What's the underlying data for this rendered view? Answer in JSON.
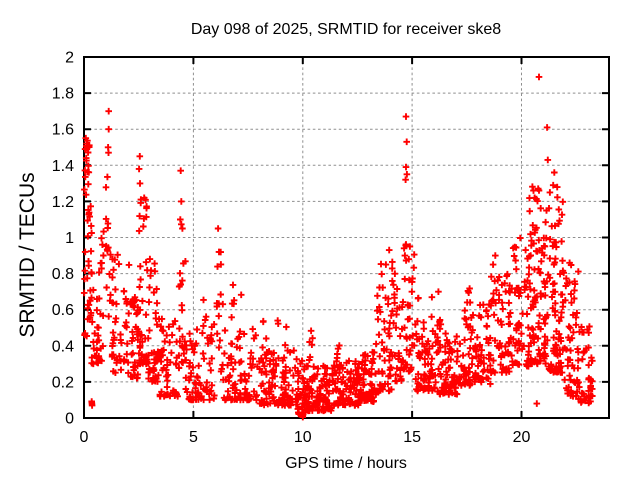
{
  "figure": {
    "background": "#ffffff",
    "text_color": "#000000",
    "border_color": "#000000"
  },
  "chart_data": {
    "type": "scatter",
    "title": "Day 098 of 2025, SRMTID for receiver ske8",
    "xlabel": "GPS time / hours",
    "ylabel": "SRMTID / TECUs",
    "xlim": [
      0,
      24
    ],
    "ylim": [
      0,
      2
    ],
    "xticks": [
      {
        "v": 0,
        "label": "0"
      },
      {
        "v": 5,
        "label": "5"
      },
      {
        "v": 10,
        "label": "10"
      },
      {
        "v": 15,
        "label": "15"
      },
      {
        "v": 20,
        "label": "20"
      }
    ],
    "yticks": [
      {
        "v": 0,
        "label": "0"
      },
      {
        "v": 0.2,
        "label": "0.2"
      },
      {
        "v": 0.4,
        "label": "0.4"
      },
      {
        "v": 0.6,
        "label": "0.6"
      },
      {
        "v": 0.8,
        "label": "0.8"
      },
      {
        "v": 1,
        "label": "1"
      },
      {
        "v": 1.2,
        "label": "1.2"
      },
      {
        "v": 1.4,
        "label": "1.4"
      },
      {
        "v": 1.6,
        "label": "1.6"
      },
      {
        "v": 1.8,
        "label": "1.8"
      },
      {
        "v": 2,
        "label": "2"
      }
    ],
    "grid": {
      "shown": true,
      "style": "dashed",
      "color": "#8f8f8f",
      "dash": "2.6 2.6"
    },
    "legend": "none",
    "series_name": "SRMTID",
    "marker": {
      "shape": "plus",
      "color": "#ff0000",
      "size": 7,
      "stroke_width": 1.9
    },
    "random_seed": 1303,
    "outlier_points": [
      [
        0.05,
        1.49
      ],
      [
        0.08,
        1.55
      ],
      [
        0.1,
        1.44
      ],
      [
        0.12,
        1.52
      ],
      [
        0.18,
        1.5
      ],
      [
        0.37,
        0.07
      ],
      [
        1.1,
        1.5
      ],
      [
        1.12,
        1.47
      ],
      [
        1.13,
        1.6
      ],
      [
        1.13,
        1.7
      ],
      [
        2.52,
        1.38
      ],
      [
        2.55,
        1.45
      ],
      [
        2.56,
        1.3
      ],
      [
        2.6,
        1.21
      ],
      [
        4.4,
        1.1
      ],
      [
        4.42,
        1.37
      ],
      [
        4.45,
        1.2
      ],
      [
        4.5,
        1.05
      ],
      [
        6.13,
        1.05
      ],
      [
        6.17,
        0.92
      ],
      [
        9.98,
        0.03
      ],
      [
        10.0,
        0.005
      ],
      [
        10.0,
        0.015
      ],
      [
        10.02,
        0.02
      ],
      [
        13.8,
        0.85
      ],
      [
        13.95,
        0.93
      ],
      [
        14.7,
        1.32
      ],
      [
        14.72,
        1.67
      ],
      [
        14.72,
        1.39
      ],
      [
        14.75,
        1.53
      ],
      [
        14.76,
        1.35
      ],
      [
        14.85,
        0.88
      ],
      [
        14.9,
        0.95
      ],
      [
        16.2,
        0.7
      ],
      [
        17.65,
        0.64
      ],
      [
        18.7,
        0.85
      ],
      [
        18.8,
        0.9
      ],
      [
        20.55,
        1.26
      ],
      [
        20.6,
        1.22
      ],
      [
        20.7,
        0.08
      ],
      [
        20.8,
        1.89
      ],
      [
        21.17,
        1.61
      ],
      [
        21.2,
        1.43
      ],
      [
        21.3,
        1.25
      ],
      [
        21.45,
        1.29
      ],
      [
        21.5,
        1.36
      ],
      [
        22.2,
        0.86
      ]
    ],
    "cluster_regions": [
      [
        0.0,
        0.35,
        0.45,
        1.3,
        35,
        1.6
      ],
      [
        0.02,
        0.25,
        1.28,
        1.58,
        12,
        1.0
      ],
      [
        0.3,
        0.9,
        0.3,
        1.05,
        42,
        1.8
      ],
      [
        0.33,
        0.45,
        0.06,
        0.14,
        2,
        1.0
      ],
      [
        1.0,
        1.25,
        0.55,
        1.45,
        15,
        1.2
      ],
      [
        1.25,
        2.1,
        0.25,
        0.95,
        48,
        1.8
      ],
      [
        2.1,
        2.5,
        0.22,
        0.68,
        32,
        1.6
      ],
      [
        2.5,
        2.95,
        0.3,
        1.25,
        45,
        1.9
      ],
      [
        2.95,
        3.45,
        0.2,
        0.9,
        40,
        1.8
      ],
      [
        3.45,
        4.35,
        0.12,
        0.55,
        55,
        1.8
      ],
      [
        4.35,
        4.65,
        0.3,
        1.1,
        20,
        1.3
      ],
      [
        4.65,
        6.0,
        0.1,
        0.52,
        75,
        1.9
      ],
      [
        5.3,
        5.6,
        0.48,
        0.66,
        4,
        1.0
      ],
      [
        6.05,
        6.35,
        0.25,
        0.92,
        15,
        1.4
      ],
      [
        6.35,
        8.0,
        0.1,
        0.5,
        80,
        2.0
      ],
      [
        6.7,
        7.3,
        0.48,
        0.74,
        6,
        1.0
      ],
      [
        8.0,
        9.75,
        0.07,
        0.38,
        110,
        1.7
      ],
      [
        8.1,
        9.5,
        0.36,
        0.55,
        8,
        1.0
      ],
      [
        9.75,
        10.05,
        0.02,
        0.32,
        25,
        1.8
      ],
      [
        10.05,
        11.4,
        0.04,
        0.3,
        115,
        1.9
      ],
      [
        10.2,
        10.45,
        0.3,
        0.54,
        6,
        1.0
      ],
      [
        11.4,
        12.6,
        0.07,
        0.33,
        95,
        1.8
      ],
      [
        11.55,
        11.8,
        0.32,
        0.43,
        4,
        1.0
      ],
      [
        12.6,
        13.35,
        0.09,
        0.38,
        70,
        1.7
      ],
      [
        13.35,
        14.15,
        0.15,
        0.75,
        55,
        1.9
      ],
      [
        13.5,
        14.1,
        0.74,
        0.95,
        5,
        1.0
      ],
      [
        14.15,
        14.6,
        0.2,
        0.8,
        30,
        1.6
      ],
      [
        14.6,
        15.1,
        0.25,
        0.98,
        35,
        1.5
      ],
      [
        15.1,
        16.0,
        0.15,
        0.68,
        60,
        1.7
      ],
      [
        16.0,
        17.4,
        0.13,
        0.48,
        95,
        1.7
      ],
      [
        16.05,
        16.4,
        0.46,
        0.62,
        5,
        1.0
      ],
      [
        17.4,
        18.6,
        0.18,
        0.65,
        80,
        1.6
      ],
      [
        17.5,
        17.8,
        0.58,
        0.72,
        4,
        1.0
      ],
      [
        18.6,
        19.6,
        0.25,
        0.8,
        65,
        1.5
      ],
      [
        19.6,
        20.35,
        0.28,
        1.0,
        55,
        1.5
      ],
      [
        20.35,
        21.1,
        0.3,
        1.3,
        90,
        1.5
      ],
      [
        21.1,
        21.9,
        0.25,
        1.3,
        90,
        1.6
      ],
      [
        21.9,
        22.6,
        0.12,
        0.85,
        55,
        1.6
      ],
      [
        22.6,
        23.25,
        0.08,
        0.55,
        40,
        1.5
      ]
    ]
  }
}
